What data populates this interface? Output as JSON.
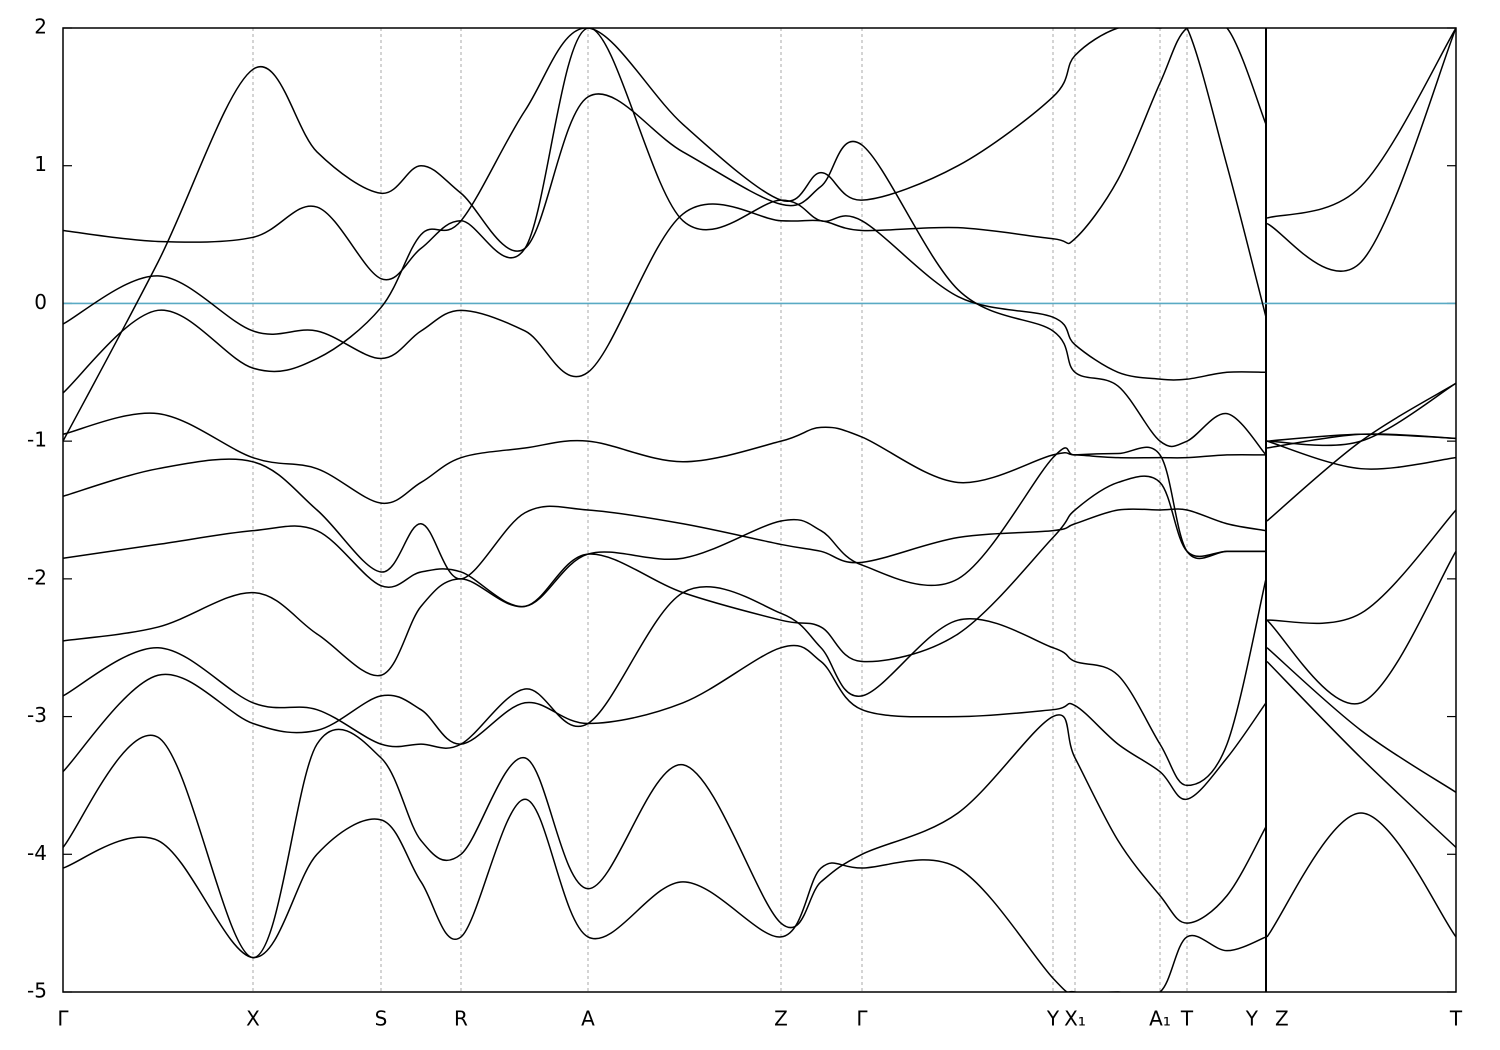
{
  "chart_data": {
    "type": "line",
    "x": [
      0,
      95,
      190,
      254,
      318,
      358,
      398,
      462,
      525,
      620,
      718,
      758,
      799,
      895,
      990,
      1012,
      1055,
      1097,
      1124,
      1164,
      1203,
      1203.5,
      1204,
      1298,
      1393
    ],
    "xlim": [
      0,
      1393
    ],
    "xticks": [
      {
        "value": 0,
        "label": "Γ"
      },
      {
        "value": 190,
        "label": "X"
      },
      {
        "value": 318,
        "label": "S"
      },
      {
        "value": 398,
        "label": "R"
      },
      {
        "value": 525,
        "label": "A"
      },
      {
        "value": 718,
        "label": "Z"
      },
      {
        "value": 799,
        "label": "Γ"
      },
      {
        "value": 990,
        "label": "Y"
      },
      {
        "value": 1012,
        "label": "X₁"
      },
      {
        "value": 1097,
        "label": "A₁"
      },
      {
        "value": 1124,
        "label": "T"
      },
      {
        "value": 1203,
        "label": "Y"
      },
      {
        "value": 1204,
        "label": "Z"
      },
      {
        "value": 1393,
        "label": "T"
      }
    ],
    "ylim": [
      -5,
      2
    ],
    "yticks": [
      -5,
      -4,
      -3,
      -2,
      -1,
      0,
      1,
      2
    ],
    "grid": true,
    "fermi_level": 0,
    "fermi_color": "#5aaac4",
    "series": [
      {
        "color": "#000000",
        "values": [
          -0.15,
          0.2,
          -0.2,
          -0.2,
          -0.4,
          -0.2,
          -0.05,
          -0.2,
          -0.5,
          0.65,
          0.6,
          0.6,
          0.53,
          0.55,
          0.47,
          0.47,
          0.9,
          1.6,
          2,
          2,
          1.3,
          null,
          0.62,
          0.85,
          2
        ]
      },
      {
        "color": "#000000",
        "values": [
          0.53,
          0.45,
          0.48,
          0.7,
          0.18,
          0.4,
          0.6,
          0.4,
          2,
          0.6,
          0.75,
          0.6,
          0.6,
          0.05,
          -0.1,
          -0.3,
          -0.5,
          -0.55,
          -0.55,
          -0.5,
          -0.5,
          null,
          0.58,
          0.3,
          2
        ]
      },
      {
        "color": "#000000",
        "values": [
          -0.65,
          -0.05,
          -0.47,
          -0.4,
          -0.03,
          0.5,
          0.6,
          1.4,
          2,
          1.3,
          0.75,
          0.95,
          0.75,
          1.0,
          1.5,
          1.8,
          2,
          2,
          2,
          1.0,
          -0.1,
          null,
          -1.0,
          -1.0,
          -0.58
        ]
      },
      {
        "color": "#000000",
        "values": [
          -0.95,
          -0.8,
          -1.12,
          -1.2,
          -1.45,
          -1.3,
          -1.12,
          -1.05,
          -1.0,
          -1.15,
          -1.0,
          -0.9,
          -0.97,
          -1.3,
          -1.1,
          -1.1,
          -1.12,
          -1.12,
          -1.12,
          -1.1,
          -1.1,
          null,
          -1.05,
          -0.95,
          -0.98
        ]
      },
      {
        "color": "#000000",
        "values": [
          -1.4,
          -1.2,
          -1.15,
          -1.5,
          -1.95,
          -1.6,
          -2.0,
          -1.52,
          -1.5,
          -1.6,
          -1.75,
          -1.8,
          -1.88,
          -1.7,
          -1.65,
          -1.6,
          -1.5,
          -1.5,
          -1.5,
          -1.6,
          -1.65,
          null,
          -1.58,
          -1.0,
          -0.58
        ]
      },
      {
        "color": "#000000",
        "values": [
          -1.85,
          -1.75,
          -1.65,
          -1.65,
          -2.05,
          -1.95,
          -1.95,
          -2.2,
          -1.82,
          -1.85,
          -1.58,
          -1.65,
          -1.9,
          -2.0,
          -1.12,
          -1.1,
          -1.09,
          -1.1,
          -1.8,
          -1.8,
          -1.8,
          null,
          -1.0,
          -1.2,
          -1.12
        ]
      },
      {
        "color": "#000000",
        "values": [
          -2.45,
          -2.35,
          -2.1,
          -2.4,
          -2.7,
          -2.2,
          -2.0,
          -2.2,
          -1.82,
          -2.1,
          -2.3,
          -2.35,
          -2.6,
          -2.4,
          -1.7,
          -1.5,
          -1.3,
          -1.3,
          -1.8,
          -1.8,
          -1.8,
          null,
          -2.3,
          -2.25,
          -1.5
        ]
      },
      {
        "color": "#000000",
        "values": [
          -2.85,
          -2.5,
          -2.9,
          -2.95,
          -3.2,
          -3.2,
          -3.2,
          -2.8,
          -3.05,
          -2.1,
          -2.25,
          -2.5,
          -2.85,
          -2.3,
          -2.5,
          -2.6,
          -2.7,
          -3.2,
          -3.5,
          -3.2,
          -2.0,
          null,
          -2.3,
          -2.9,
          -1.8
        ]
      },
      {
        "color": "#000000",
        "values": [
          -3.4,
          -2.7,
          -3.05,
          -3.1,
          -2.85,
          -2.95,
          -3.2,
          -2.9,
          -3.05,
          -2.9,
          -2.5,
          -2.6,
          -2.95,
          -3.0,
          -2.95,
          -2.92,
          -3.2,
          -3.4,
          -3.6,
          -3.3,
          -2.9,
          null,
          -2.5,
          -3.1,
          -3.55
        ]
      },
      {
        "color": "#000000",
        "values": [
          -3.95,
          -3.15,
          -4.75,
          -3.2,
          -3.3,
          -3.9,
          -4.0,
          -3.3,
          -4.25,
          -3.35,
          -4.5,
          -4.2,
          -4.0,
          -3.7,
          -3.0,
          -3.3,
          -3.9,
          -4.3,
          -4.5,
          -4.3,
          -3.8,
          null,
          -2.6,
          -3.3,
          -3.95
        ]
      },
      {
        "color": "#000000",
        "values": [
          -4.1,
          -3.9,
          -4.75,
          -4.0,
          -3.75,
          -4.2,
          -4.6,
          -3.6,
          -4.6,
          -4.2,
          -4.6,
          -4.1,
          -4.1,
          -4.1,
          -4.9,
          -5,
          -5,
          -5,
          -4.6,
          -4.7,
          -4.6,
          null,
          -4.6,
          -3.7,
          -4.6
        ]
      },
      {
        "color": "#000000",
        "values": [
          -1.0,
          0.3,
          1.7,
          1.1,
          0.8,
          1.0,
          0.8,
          0.4,
          1.5,
          1.1,
          0.72,
          0.85,
          1.15,
          0.1,
          -0.2,
          -0.5,
          -0.6,
          -1.0,
          -1.0,
          -0.8,
          -1.1,
          null,
          -1.0,
          -0.95,
          -0.98
        ]
      }
    ]
  }
}
